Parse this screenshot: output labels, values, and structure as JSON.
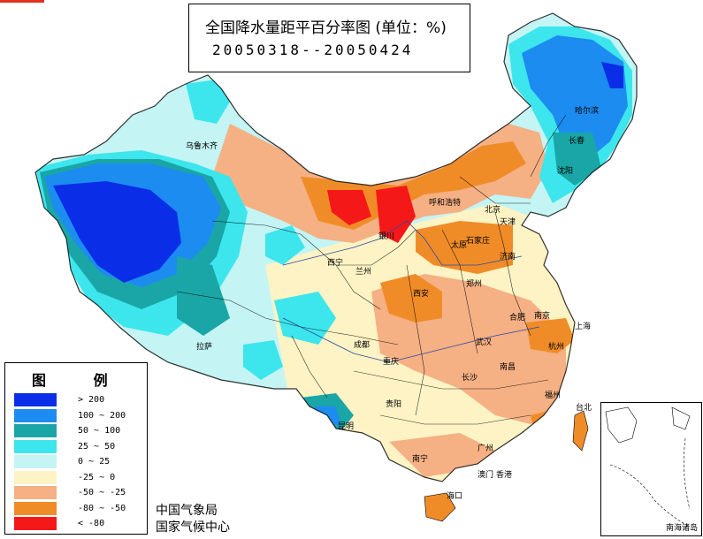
{
  "title": {
    "main": "全国降水量距平百分率图 (单位：%)",
    "period": "20050318--20050424"
  },
  "legend": {
    "title": "图  例",
    "items": [
      {
        "label": "> 200",
        "color": "#0a2ee8"
      },
      {
        "label": "100 ~ 200",
        "color": "#1c8cf0"
      },
      {
        "label": "50 ~ 100",
        "color": "#1aa6a6"
      },
      {
        "label": "25 ~ 50",
        "color": "#3ce6ec"
      },
      {
        "label": "0 ~ 25",
        "color": "#c4f4f4"
      },
      {
        "label": "-25 ~ 0",
        "color": "#fdf3c4"
      },
      {
        "label": "-50 ~ -25",
        "color": "#f5b084"
      },
      {
        "label": "-80 ~ -50",
        "color": "#f08c28"
      },
      {
        "label": "< -80",
        "color": "#f51818"
      }
    ]
  },
  "credits": {
    "agency_1": "中国气象局",
    "agency_2": "国家气候中心"
  },
  "inset": {
    "label": "南海诸岛"
  },
  "cities": [
    {
      "name": "乌鲁木齐"
    },
    {
      "name": "呼和浩特"
    },
    {
      "name": "哈尔滨"
    },
    {
      "name": "长春"
    },
    {
      "name": "沈阳"
    },
    {
      "name": "北京"
    },
    {
      "name": "天津"
    },
    {
      "name": "石家庄"
    },
    {
      "name": "太原"
    },
    {
      "name": "银川"
    },
    {
      "name": "西宁"
    },
    {
      "name": "兰州"
    },
    {
      "name": "济南"
    },
    {
      "name": "郑州"
    },
    {
      "name": "西安"
    },
    {
      "name": "合肥"
    },
    {
      "name": "南京"
    },
    {
      "name": "上海"
    },
    {
      "name": "武汉"
    },
    {
      "name": "杭州"
    },
    {
      "name": "成都"
    },
    {
      "name": "重庆"
    },
    {
      "name": "拉萨"
    },
    {
      "name": "长沙"
    },
    {
      "name": "南昌"
    },
    {
      "name": "福州"
    },
    {
      "name": "台北"
    },
    {
      "name": "贵阳"
    },
    {
      "name": "昆明"
    },
    {
      "name": "南宁"
    },
    {
      "name": "广州"
    },
    {
      "name": "香港"
    },
    {
      "name": "澳门"
    },
    {
      "name": "海口"
    }
  ]
}
